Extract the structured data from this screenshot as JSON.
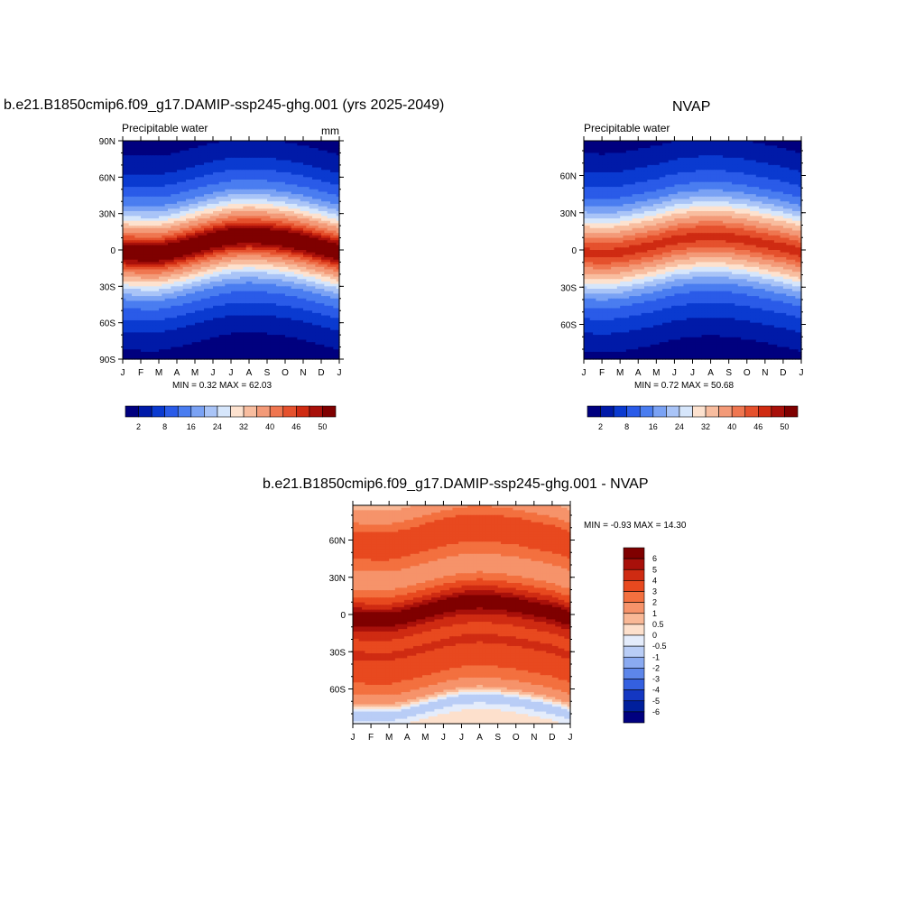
{
  "panels": [
    {
      "title": "b.e21.B1850cmip6.f09_g17.DAMIP-ssp245-ghg.001 (yrs 2025-2049)",
      "subtitle": "Precipitable water",
      "units": "mm",
      "stats": "MIN =   0.32 MAX =  62.03",
      "yticks": [
        "90N",
        "60N",
        "30N",
        "0",
        "30S",
        "60S",
        "90S"
      ],
      "xticks": [
        "J",
        "F",
        "M",
        "A",
        "M",
        "J",
        "J",
        "A",
        "S",
        "O",
        "N",
        "D",
        "J"
      ],
      "colorbar_labels": [
        "2",
        "8",
        "16",
        "24",
        "32",
        "40",
        "46",
        "50"
      ]
    },
    {
      "title": "NVAP",
      "subtitle": "Precipitable water",
      "stats": "MIN =   0.72 MAX =  50.68",
      "yticks": [
        "60N",
        "30N",
        "0",
        "30S",
        "60S"
      ],
      "xticks": [
        "J",
        "F",
        "M",
        "A",
        "M",
        "J",
        "J",
        "A",
        "S",
        "O",
        "N",
        "D",
        "J"
      ],
      "colorbar_labels": [
        "2",
        "8",
        "16",
        "24",
        "32",
        "40",
        "46",
        "50"
      ]
    },
    {
      "title": "b.e21.B1850cmip6.f09_g17.DAMIP-ssp245-ghg.001 - NVAP",
      "stats": "MIN =  -0.93 MAX =  14.30",
      "yticks": [
        "60N",
        "30N",
        "0",
        "30S",
        "60S"
      ],
      "xticks": [
        "J",
        "F",
        "M",
        "A",
        "M",
        "J",
        "J",
        "A",
        "S",
        "O",
        "N",
        "D",
        "J"
      ],
      "colorbar_labels": [
        "6",
        "5",
        "4",
        "3",
        "2",
        "1",
        "0.5",
        "0",
        "-0.5",
        "-1",
        "-2",
        "-3",
        "-4",
        "-5",
        "-6"
      ]
    }
  ],
  "colors": {
    "abs_palette": [
      "#00007f",
      "#001aa8",
      "#0a3ad0",
      "#2a5be8",
      "#4a7df0",
      "#7aa2f4",
      "#a9c4f7",
      "#d6e6fb",
      "#fde2cf",
      "#f8bd9f",
      "#f39a78",
      "#ef7650",
      "#e5512d",
      "#cf2b12",
      "#a8100a",
      "#7f0000"
    ],
    "diff_palette": [
      "#7f0000",
      "#a8100a",
      "#cf2b12",
      "#e8491f",
      "#f3703f",
      "#f6936a",
      "#f9b896",
      "#fde0cc",
      "#e4ecfb",
      "#b9cdf6",
      "#8aaaf1",
      "#5d86ea",
      "#3460e0",
      "#1437c2",
      "#001f9c",
      "#00007f"
    ]
  },
  "chart_data": [
    {
      "type": "heatmap",
      "title": "b.e21.B1850cmip6.f09_g17.DAMIP-ssp245-ghg.001 (yrs 2025-2049)",
      "subtitle": "Precipitable water",
      "units": "mm",
      "x": [
        "J",
        "F",
        "M",
        "A",
        "M",
        "J",
        "J",
        "A",
        "S",
        "O",
        "N",
        "D",
        "J"
      ],
      "ylim": [
        -90,
        90
      ],
      "min": 0.32,
      "max": 62.03,
      "levels": [
        2,
        5,
        8,
        12,
        16,
        20,
        24,
        28,
        32,
        36,
        40,
        43,
        46,
        48,
        50
      ],
      "itcz_center_lat": [
        -2,
        -3,
        -3,
        0,
        4,
        8,
        11,
        12,
        11,
        9,
        6,
        2,
        -2
      ],
      "profile_lat": [
        -90,
        -80,
        -70,
        -60,
        -50,
        -40,
        -30,
        -20,
        -10,
        0,
        10,
        20,
        30,
        40,
        50,
        60,
        70,
        80,
        90
      ],
      "profile_value": [
        1,
        2,
        4,
        6,
        10,
        15,
        24,
        36,
        47,
        55,
        47,
        36,
        24,
        15,
        10,
        6,
        4,
        2,
        1
      ]
    },
    {
      "type": "heatmap",
      "title": "NVAP",
      "subtitle": "Precipitable water",
      "x": [
        "J",
        "F",
        "M",
        "A",
        "M",
        "J",
        "J",
        "A",
        "S",
        "O",
        "N",
        "D",
        "J"
      ],
      "ylim": [
        -90,
        90
      ],
      "min": 0.72,
      "max": 50.68,
      "levels": [
        2,
        5,
        8,
        12,
        16,
        20,
        24,
        28,
        32,
        36,
        40,
        43,
        46,
        48,
        50
      ],
      "itcz_center_lat": [
        -2,
        -3,
        -2,
        1,
        4,
        8,
        10,
        11,
        10,
        8,
        5,
        2,
        -2
      ],
      "profile_lat": [
        -90,
        -80,
        -70,
        -60,
        -50,
        -40,
        -30,
        -20,
        -10,
        0,
        10,
        20,
        30,
        40,
        50,
        60,
        70,
        80,
        90
      ],
      "profile_value": [
        1,
        2,
        4,
        6,
        9,
        14,
        22,
        33,
        42,
        48,
        42,
        33,
        22,
        14,
        9,
        6,
        4,
        2,
        1
      ]
    },
    {
      "type": "heatmap",
      "title": "b.e21.B1850cmip6.f09_g17.DAMIP-ssp245-ghg.001 - NVAP",
      "x": [
        "J",
        "F",
        "M",
        "A",
        "M",
        "J",
        "J",
        "A",
        "S",
        "O",
        "N",
        "D",
        "J"
      ],
      "ylim": [
        -90,
        90
      ],
      "min": -0.93,
      "max": 14.3,
      "levels": [
        -6,
        -5,
        -4,
        -3,
        -2,
        -1,
        -0.5,
        0,
        0.5,
        1,
        2,
        3,
        4,
        5,
        6
      ],
      "itcz_center_lat": [
        -3,
        -4,
        -4,
        -1,
        3,
        7,
        10,
        11,
        10,
        8,
        5,
        2,
        -3
      ],
      "profile_lat": [
        -90,
        -80,
        -75,
        -70,
        -60,
        -50,
        -40,
        -30,
        -20,
        -10,
        0,
        10,
        20,
        30,
        40,
        50,
        60,
        70,
        80,
        90
      ],
      "profile_value": [
        0.3,
        -0.7,
        -0.5,
        0.8,
        2.2,
        3.2,
        3.6,
        4.2,
        3.6,
        5.0,
        7.5,
        4.5,
        2.5,
        1.0,
        2.2,
        3.2,
        3.6,
        3.0,
        1.5,
        0.8
      ]
    }
  ]
}
